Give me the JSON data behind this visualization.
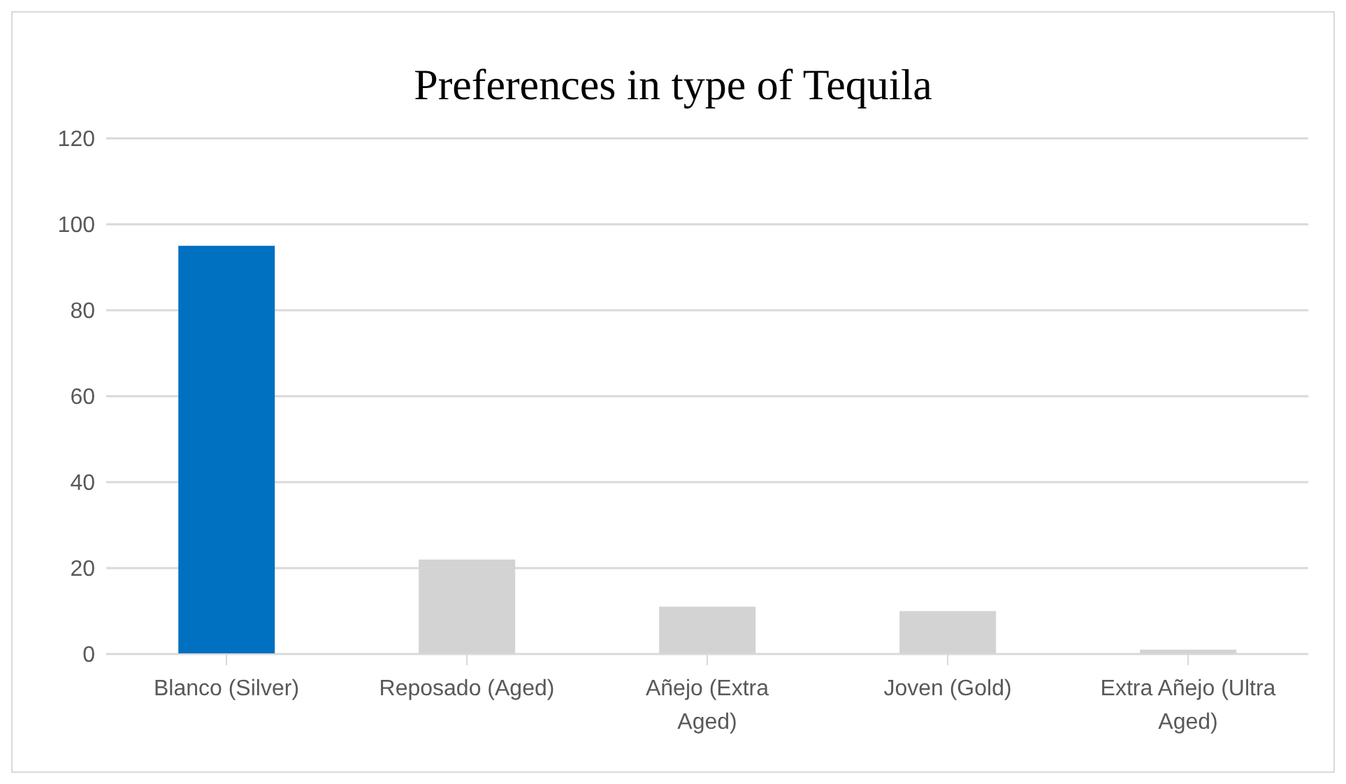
{
  "chart_data": {
    "type": "bar",
    "title": "Preferences in type of Tequila",
    "categories": [
      "Blanco (Silver)",
      "Reposado (Aged)",
      "Añejo (Extra Aged)",
      "Joven (Gold)",
      "Extra Añejo (Ultra Aged)"
    ],
    "values": [
      95,
      22,
      11,
      10,
      1
    ],
    "colors": [
      "#0070c0",
      "#d3d3d3",
      "#d3d3d3",
      "#d3d3d3",
      "#d3d3d3"
    ],
    "ylim": [
      0,
      120
    ],
    "yticks": [
      0,
      20,
      40,
      60,
      80,
      100,
      120
    ],
    "grid": "y"
  }
}
